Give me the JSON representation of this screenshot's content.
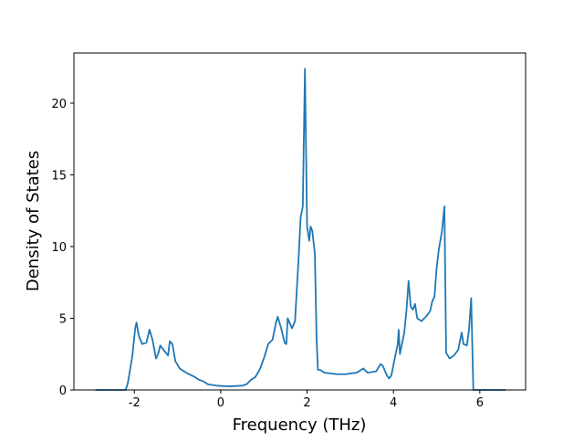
{
  "chart_data": {
    "type": "line",
    "x_label": "Frequency (THz)",
    "y_label": "Density of States",
    "xlim": [
      -3.4,
      7.06
    ],
    "ylim": [
      0,
      23.5
    ],
    "xticks": [
      -2,
      0,
      2,
      4,
      6
    ],
    "yticks": [
      0,
      5,
      10,
      15,
      20
    ],
    "x": [
      -2.9,
      -2.2,
      -2.15,
      -2.05,
      -1.98,
      -1.95,
      -1.9,
      -1.82,
      -1.72,
      -1.65,
      -1.58,
      -1.5,
      -1.45,
      -1.4,
      -1.3,
      -1.22,
      -1.18,
      -1.12,
      -1.05,
      -0.95,
      -0.8,
      -0.6,
      -0.5,
      -0.4,
      -0.3,
      -0.1,
      0.2,
      0.5,
      0.6,
      0.7,
      0.8,
      0.9,
      1.0,
      1.1,
      1.2,
      1.28,
      1.32,
      1.4,
      1.48,
      1.52,
      1.55,
      1.65,
      1.72,
      1.8,
      1.85,
      1.9,
      1.95,
      2.0,
      2.05,
      2.08,
      2.12,
      2.18,
      2.22,
      2.25,
      2.3,
      2.4,
      2.7,
      2.9,
      3.0,
      3.15,
      3.3,
      3.4,
      3.6,
      3.7,
      3.75,
      3.85,
      3.9,
      3.95,
      4.05,
      4.1,
      4.12,
      4.15,
      4.25,
      4.3,
      4.35,
      4.4,
      4.45,
      4.5,
      4.55,
      4.65,
      4.75,
      4.85,
      4.9,
      4.95,
      5.0,
      5.05,
      5.12,
      5.18,
      5.22,
      5.3,
      5.4,
      5.5,
      5.58,
      5.62,
      5.7,
      5.75,
      5.8,
      5.85,
      6.6
    ],
    "series": [
      {
        "color": "#1f77b4",
        "values": [
          0,
          0,
          0.5,
          2.3,
          4.3,
          4.7,
          3.8,
          3.2,
          3.3,
          4.2,
          3.5,
          2.2,
          2.5,
          3.1,
          2.7,
          2.4,
          3.4,
          3.2,
          2.0,
          1.5,
          1.2,
          0.9,
          0.7,
          0.6,
          0.4,
          0.3,
          0.25,
          0.3,
          0.4,
          0.7,
          0.9,
          1.4,
          2.2,
          3.2,
          3.5,
          4.7,
          5.1,
          4.3,
          3.3,
          3.2,
          5.0,
          4.3,
          4.8,
          9,
          12,
          12.8,
          22.4,
          11.4,
          10.4,
          11.4,
          11.1,
          9.5,
          3.5,
          1.4,
          1.4,
          1.2,
          1.1,
          1.1,
          1.15,
          1.2,
          1.5,
          1.2,
          1.3,
          1.8,
          1.7,
          1.0,
          0.8,
          1.0,
          2.5,
          3.2,
          4.2,
          2.5,
          4.0,
          5.5,
          7.6,
          5.8,
          5.6,
          6.0,
          5.0,
          4.8,
          5.1,
          5.5,
          6.2,
          6.5,
          8.5,
          9.8,
          11,
          12.8,
          2.6,
          2.2,
          2.4,
          2.8,
          4.0,
          3.2,
          3.1,
          4.2,
          6.4,
          0,
          0
        ]
      }
    ]
  }
}
